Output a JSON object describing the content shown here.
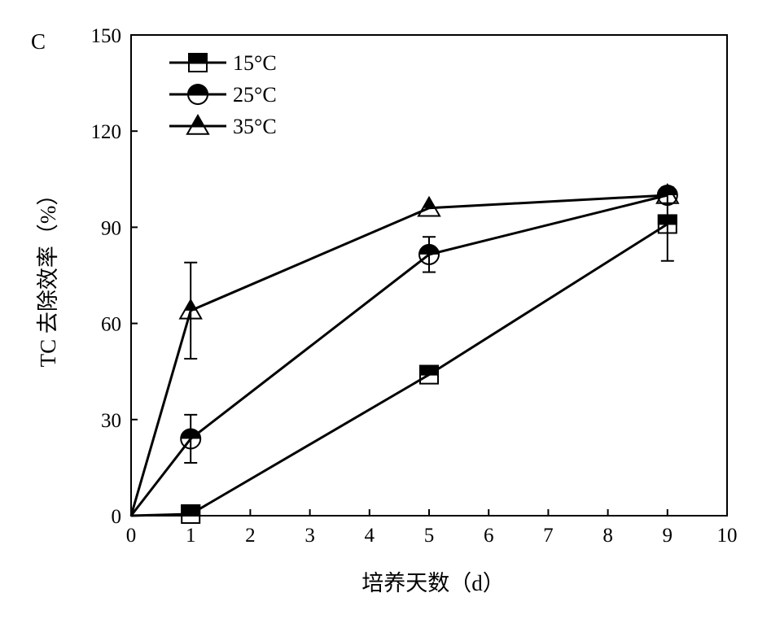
{
  "panel_label": "C",
  "chart_data": {
    "type": "line",
    "title": "",
    "xlabel": "培养天数（d）",
    "ylabel": "TC 去除效率（%）",
    "xlim": [
      0,
      10
    ],
    "ylim": [
      0,
      150
    ],
    "x_ticks": [
      0,
      1,
      2,
      3,
      4,
      5,
      6,
      7,
      8,
      9,
      10
    ],
    "y_ticks": [
      0,
      30,
      60,
      90,
      120,
      150
    ],
    "grid": false,
    "legend_position": "top-left",
    "series": [
      {
        "name": "15°C",
        "marker": "square",
        "x": [
          0,
          1,
          5,
          9
        ],
        "y": [
          0,
          0.5,
          44,
          91
        ],
        "error": [
          0,
          0,
          0,
          11.5
        ]
      },
      {
        "name": "25°C",
        "marker": "circle",
        "x": [
          0,
          1,
          5,
          9
        ],
        "y": [
          0,
          24,
          81.5,
          100
        ],
        "error": [
          0,
          7.5,
          5.5,
          0
        ]
      },
      {
        "name": "35°C",
        "marker": "triangle",
        "x": [
          0,
          1,
          5,
          9
        ],
        "y": [
          0,
          64,
          96,
          100
        ],
        "error": [
          0,
          15,
          0,
          0
        ]
      }
    ]
  }
}
